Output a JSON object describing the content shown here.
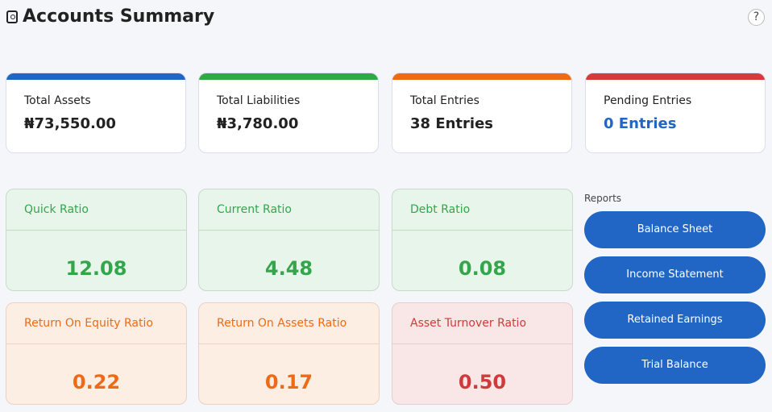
{
  "header": {
    "title": "Accounts Summary",
    "help": "?"
  },
  "summary_cards": [
    {
      "label": "Total Assets",
      "value": "₦73,550.00"
    },
    {
      "label": "Total Liabilities",
      "value": "₦3,780.00"
    },
    {
      "label": "Total Entries",
      "value": "38 Entries"
    },
    {
      "label": "Pending Entries",
      "value": "0 Entries"
    }
  ],
  "ratio_cards": [
    {
      "label": "Quick Ratio",
      "value": "12.08"
    },
    {
      "label": "Current Ratio",
      "value": "4.48"
    },
    {
      "label": "Debt Ratio",
      "value": "0.08"
    },
    {
      "label": "Return On Equity Ratio",
      "value": "0.22"
    },
    {
      "label": "Return On Assets Ratio",
      "value": "0.17"
    },
    {
      "label": "Asset Turnover Ratio",
      "value": "0.50"
    }
  ],
  "reports": {
    "title": "Reports",
    "buttons": [
      "Balance Sheet",
      "Income Statement",
      "Retained Earnings",
      "Trial Balance"
    ]
  }
}
